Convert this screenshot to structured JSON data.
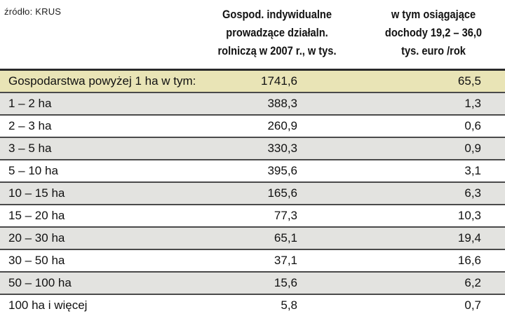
{
  "source": "źródło: KRUS",
  "headers": {
    "col1": "Gospod. indywidualne\nprowadzące działaln.\nrolniczą w 2007 r., w tys.",
    "col2": "w tym osiągające\ndochody 19,2 – 36,0\ntys. euro /rok"
  },
  "rows": [
    {
      "label": "Gospodarstwa powyżej 1 ha w tym:",
      "v1": "1741,6",
      "v2": "65,5"
    },
    {
      "label": "1 – 2 ha",
      "v1": "388,3",
      "v2": "1,3"
    },
    {
      "label": "2 – 3 ha",
      "v1": "260,9",
      "v2": "0,6"
    },
    {
      "label": "3 – 5 ha",
      "v1": "330,3",
      "v2": "0,9"
    },
    {
      "label": "5 – 10 ha",
      "v1": "395,6",
      "v2": "3,1"
    },
    {
      "label": "10 – 15 ha",
      "v1": "165,6",
      "v2": "6,3"
    },
    {
      "label": "15 – 20 ha",
      "v1": "77,3",
      "v2": "10,3"
    },
    {
      "label": "20 – 30 ha",
      "v1": "65,1",
      "v2": "19,4"
    },
    {
      "label": "30 – 50 ha",
      "v1": "37,1",
      "v2": "16,6"
    },
    {
      "label": "50 – 100 ha",
      "v1": "15,6",
      "v2": "6,2"
    },
    {
      "label": "100 ha i więcej",
      "v1": "5,8",
      "v2": "0,7"
    }
  ],
  "colors": {
    "total_row": "#e9e4b6",
    "shaded_row": "#e3e3e0",
    "white_row": "#ffffff",
    "rule": "#2a2a2a"
  }
}
